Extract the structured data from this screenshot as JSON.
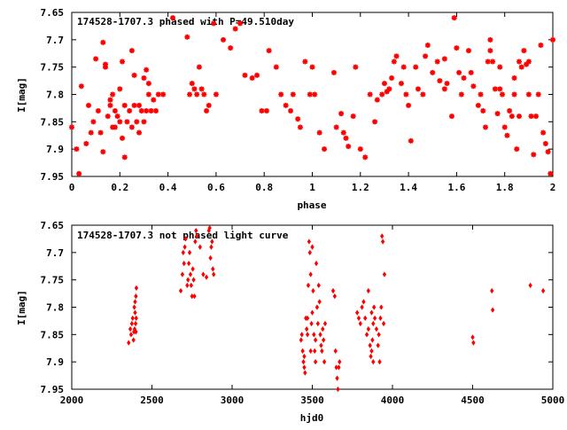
{
  "colors": {
    "data": "#ff0000",
    "axis": "#000000",
    "background": "#ffffff"
  },
  "chart_data": [
    {
      "type": "scatter",
      "title": "174528-1707.3 phased with P=49.510day",
      "xlabel": "phase",
      "ylabel": "I[mag]",
      "xlim": [
        0,
        2
      ],
      "ylim": [
        7.95,
        7.65
      ],
      "y_inverted": true,
      "grid": false,
      "x_ticks": [
        "0",
        "0.2",
        "0.4",
        "0.6",
        "0.8",
        "1",
        "1.2",
        "1.4",
        "1.6",
        "1.8",
        "2"
      ],
      "y_ticks": [
        "7.65",
        "7.7",
        "7.75",
        "7.8",
        "7.85",
        "7.9",
        "7.95"
      ],
      "marker": "x-star",
      "points": [
        [
          0.0,
          7.86
        ],
        [
          0.02,
          7.9
        ],
        [
          0.03,
          7.945
        ],
        [
          0.04,
          7.785
        ],
        [
          0.06,
          7.89
        ],
        [
          0.07,
          7.82
        ],
        [
          0.08,
          7.87
        ],
        [
          0.09,
          7.85
        ],
        [
          0.1,
          7.735
        ],
        [
          0.11,
          7.83
        ],
        [
          0.12,
          7.87
        ],
        [
          0.13,
          7.705
        ],
        [
          0.14,
          7.745
        ],
        [
          0.15,
          7.84
        ],
        [
          0.16,
          7.82
        ],
        [
          0.17,
          7.86
        ],
        [
          0.18,
          7.86
        ],
        [
          0.19,
          7.84
        ],
        [
          0.2,
          7.85
        ],
        [
          0.21,
          7.74
        ],
        [
          0.22,
          7.82
        ],
        [
          0.23,
          7.85
        ],
        [
          0.24,
          7.83
        ],
        [
          0.25,
          7.86
        ],
        [
          0.26,
          7.82
        ],
        [
          0.27,
          7.85
        ],
        [
          0.28,
          7.87
        ],
        [
          0.29,
          7.83
        ],
        [
          0.3,
          7.85
        ],
        [
          0.31,
          7.83
        ],
        [
          0.32,
          7.8
        ],
        [
          0.33,
          7.83
        ],
        [
          0.36,
          7.8
        ],
        [
          0.38,
          7.8
        ],
        [
          0.14,
          7.75
        ],
        [
          0.13,
          7.905
        ],
        [
          0.16,
          7.81
        ],
        [
          0.17,
          7.8
        ],
        [
          0.18,
          7.83
        ],
        [
          0.2,
          7.79
        ],
        [
          0.21,
          7.88
        ],
        [
          0.22,
          7.915
        ],
        [
          0.25,
          7.72
        ],
        [
          0.26,
          7.765
        ],
        [
          0.28,
          7.82
        ],
        [
          0.3,
          7.77
        ],
        [
          0.31,
          7.755
        ],
        [
          0.32,
          7.78
        ],
        [
          0.34,
          7.81
        ],
        [
          0.35,
          7.83
        ],
        [
          0.42,
          7.66
        ],
        [
          0.48,
          7.695
        ],
        [
          0.49,
          7.8
        ],
        [
          0.5,
          7.78
        ],
        [
          0.51,
          7.79
        ],
        [
          0.52,
          7.8
        ],
        [
          0.53,
          7.75
        ],
        [
          0.54,
          7.79
        ],
        [
          0.55,
          7.8
        ],
        [
          0.56,
          7.83
        ],
        [
          0.57,
          7.82
        ],
        [
          0.59,
          7.67
        ],
        [
          0.6,
          7.8
        ],
        [
          0.63,
          7.7
        ],
        [
          0.66,
          7.715
        ],
        [
          0.68,
          7.68
        ],
        [
          0.7,
          7.67
        ],
        [
          0.72,
          7.765
        ],
        [
          0.75,
          7.77
        ],
        [
          0.77,
          7.765
        ],
        [
          0.79,
          7.83
        ],
        [
          0.81,
          7.83
        ],
        [
          0.82,
          7.72
        ],
        [
          0.85,
          7.75
        ],
        [
          0.87,
          7.8
        ],
        [
          0.89,
          7.82
        ],
        [
          0.91,
          7.83
        ],
        [
          0.92,
          7.8
        ],
        [
          0.94,
          7.845
        ],
        [
          0.95,
          7.86
        ],
        [
          0.97,
          7.74
        ],
        [
          0.99,
          7.8
        ],
        [
          1.0,
          7.75
        ],
        [
          1.01,
          7.8
        ],
        [
          1.03,
          7.87
        ],
        [
          1.05,
          7.9
        ],
        [
          1.09,
          7.76
        ],
        [
          1.1,
          7.86
        ],
        [
          1.12,
          7.835
        ],
        [
          1.13,
          7.87
        ],
        [
          1.14,
          7.88
        ],
        [
          1.15,
          7.895
        ],
        [
          1.17,
          7.84
        ],
        [
          1.18,
          7.75
        ],
        [
          1.2,
          7.9
        ],
        [
          1.22,
          7.915
        ],
        [
          1.24,
          7.8
        ],
        [
          1.26,
          7.85
        ],
        [
          1.27,
          7.81
        ],
        [
          1.29,
          7.8
        ],
        [
          1.3,
          7.78
        ],
        [
          1.31,
          7.795
        ],
        [
          1.32,
          7.79
        ],
        [
          1.33,
          7.77
        ],
        [
          1.34,
          7.74
        ],
        [
          1.35,
          7.73
        ],
        [
          1.37,
          7.78
        ],
        [
          1.38,
          7.75
        ],
        [
          1.39,
          7.8
        ],
        [
          1.4,
          7.82
        ],
        [
          1.41,
          7.885
        ],
        [
          1.43,
          7.75
        ],
        [
          1.44,
          7.79
        ],
        [
          1.46,
          7.8
        ],
        [
          1.47,
          7.73
        ],
        [
          1.48,
          7.71
        ],
        [
          1.5,
          7.76
        ],
        [
          1.52,
          7.74
        ],
        [
          1.53,
          7.775
        ],
        [
          1.55,
          7.735
        ],
        [
          1.56,
          7.78
        ],
        [
          1.58,
          7.84
        ],
        [
          1.59,
          7.66
        ],
        [
          1.6,
          7.715
        ],
        [
          1.61,
          7.76
        ],
        [
          1.63,
          7.77
        ],
        [
          1.65,
          7.72
        ],
        [
          1.66,
          7.76
        ],
        [
          1.67,
          7.785
        ],
        [
          1.69,
          7.82
        ],
        [
          1.7,
          7.8
        ],
        [
          1.71,
          7.83
        ],
        [
          1.72,
          7.86
        ],
        [
          1.73,
          7.74
        ],
        [
          1.74,
          7.7
        ],
        [
          1.75,
          7.74
        ],
        [
          1.76,
          7.79
        ],
        [
          1.77,
          7.835
        ],
        [
          1.78,
          7.79
        ],
        [
          1.79,
          7.8
        ],
        [
          1.8,
          7.86
        ],
        [
          1.81,
          7.875
        ],
        [
          1.82,
          7.83
        ],
        [
          1.83,
          7.84
        ],
        [
          1.84,
          7.8
        ],
        [
          1.85,
          7.9
        ],
        [
          1.86,
          7.84
        ],
        [
          1.87,
          7.75
        ],
        [
          1.88,
          7.72
        ],
        [
          1.89,
          7.745
        ],
        [
          1.9,
          7.8
        ],
        [
          1.91,
          7.84
        ],
        [
          1.92,
          7.91
        ],
        [
          1.93,
          7.84
        ],
        [
          1.94,
          7.8
        ],
        [
          1.95,
          7.71
        ],
        [
          1.96,
          7.87
        ],
        [
          1.97,
          7.89
        ],
        [
          1.98,
          7.905
        ],
        [
          1.99,
          7.945
        ],
        [
          2.0,
          7.7
        ],
        [
          1.55,
          7.79
        ],
        [
          1.62,
          7.8
        ],
        [
          1.74,
          7.72
        ],
        [
          1.78,
          7.75
        ],
        [
          1.84,
          7.77
        ],
        [
          1.86,
          7.74
        ],
        [
          1.9,
          7.74
        ]
      ]
    },
    {
      "type": "scatter",
      "title": "174528-1707.3 not phased light curve",
      "xlabel": "hjd0",
      "ylabel": "I[mag]",
      "xlim": [
        2000,
        5000
      ],
      "ylim": [
        7.95,
        7.65
      ],
      "y_inverted": true,
      "grid": false,
      "x_ticks": [
        "2000",
        "2500",
        "3000",
        "3500",
        "4000",
        "4500",
        "5000"
      ],
      "y_ticks": [
        "7.65",
        "7.7",
        "7.75",
        "7.8",
        "7.85",
        "7.9",
        "7.95"
      ],
      "marker": "diamond",
      "points": [
        [
          2355,
          7.865
        ],
        [
          2365,
          7.84
        ],
        [
          2370,
          7.85
        ],
        [
          2375,
          7.83
        ],
        [
          2380,
          7.82
        ],
        [
          2385,
          7.86
        ],
        [
          2390,
          7.8
        ],
        [
          2395,
          7.81
        ],
        [
          2395,
          7.79
        ],
        [
          2400,
          7.78
        ],
        [
          2403,
          7.765
        ],
        [
          2398,
          7.83
        ],
        [
          2402,
          7.82
        ],
        [
          2400,
          7.845
        ],
        [
          2392,
          7.84
        ],
        [
          2388,
          7.845
        ],
        [
          2680,
          7.77
        ],
        [
          2690,
          7.74
        ],
        [
          2695,
          7.7
        ],
        [
          2700,
          7.72
        ],
        [
          2705,
          7.69
        ],
        [
          2710,
          7.675
        ],
        [
          2720,
          7.76
        ],
        [
          2725,
          7.75
        ],
        [
          2730,
          7.72
        ],
        [
          2735,
          7.7
        ],
        [
          2740,
          7.74
        ],
        [
          2745,
          7.76
        ],
        [
          2750,
          7.78
        ],
        [
          2755,
          7.73
        ],
        [
          2760,
          7.75
        ],
        [
          2765,
          7.78
        ],
        [
          2770,
          7.68
        ],
        [
          2775,
          7.66
        ],
        [
          2780,
          7.67
        ],
        [
          2800,
          7.69
        ],
        [
          2820,
          7.74
        ],
        [
          2840,
          7.745
        ],
        [
          2855,
          7.66
        ],
        [
          2860,
          7.655
        ],
        [
          2865,
          7.71
        ],
        [
          2870,
          7.69
        ],
        [
          2875,
          7.68
        ],
        [
          2880,
          7.73
        ],
        [
          2885,
          7.74
        ],
        [
          3430,
          7.86
        ],
        [
          3435,
          7.85
        ],
        [
          3440,
          7.88
        ],
        [
          3445,
          7.9
        ],
        [
          3450,
          7.89
        ],
        [
          3455,
          7.92
        ],
        [
          3460,
          7.82
        ],
        [
          3465,
          7.84
        ],
        [
          3470,
          7.85
        ],
        [
          3475,
          7.76
        ],
        [
          3480,
          7.68
        ],
        [
          3485,
          7.7
        ],
        [
          3490,
          7.74
        ],
        [
          3495,
          7.83
        ],
        [
          3500,
          7.81
        ],
        [
          3505,
          7.77
        ],
        [
          3510,
          7.85
        ],
        [
          3515,
          7.88
        ],
        [
          3520,
          7.86
        ],
        [
          3525,
          7.72
        ],
        [
          3530,
          7.8
        ],
        [
          3535,
          7.83
        ],
        [
          3540,
          7.76
        ],
        [
          3545,
          7.79
        ],
        [
          3550,
          7.85
        ],
        [
          3555,
          7.87
        ],
        [
          3560,
          7.88
        ],
        [
          3565,
          7.84
        ],
        [
          3570,
          7.86
        ],
        [
          3575,
          7.9
        ],
        [
          3580,
          7.83
        ],
        [
          3630,
          7.77
        ],
        [
          3640,
          7.78
        ],
        [
          3645,
          7.88
        ],
        [
          3650,
          7.91
        ],
        [
          3655,
          7.93
        ],
        [
          3660,
          7.95
        ],
        [
          3665,
          7.91
        ],
        [
          3670,
          7.9
        ],
        [
          3520,
          7.9
        ],
        [
          3500,
          7.69
        ],
        [
          3470,
          7.82
        ],
        [
          3450,
          7.91
        ],
        [
          3490,
          7.88
        ],
        [
          3780,
          7.81
        ],
        [
          3790,
          7.82
        ],
        [
          3800,
          7.83
        ],
        [
          3810,
          7.8
        ],
        [
          3820,
          7.79
        ],
        [
          3830,
          7.82
        ],
        [
          3840,
          7.85
        ],
        [
          3850,
          7.84
        ],
        [
          3860,
          7.87
        ],
        [
          3865,
          7.89
        ],
        [
          3870,
          7.88
        ],
        [
          3875,
          7.86
        ],
        [
          3880,
          7.83
        ],
        [
          3885,
          7.8
        ],
        [
          3890,
          7.82
        ],
        [
          3900,
          7.84
        ],
        [
          3910,
          7.87
        ],
        [
          3915,
          7.85
        ],
        [
          3920,
          7.9
        ],
        [
          3930,
          7.8
        ],
        [
          3935,
          7.67
        ],
        [
          3940,
          7.68
        ],
        [
          3945,
          7.83
        ],
        [
          3950,
          7.74
        ],
        [
          3850,
          7.77
        ],
        [
          3870,
          7.81
        ],
        [
          3880,
          7.9
        ],
        [
          3925,
          7.82
        ],
        [
          4500,
          7.855
        ],
        [
          4505,
          7.865
        ],
        [
          4620,
          7.77
        ],
        [
          4625,
          7.805
        ],
        [
          4860,
          7.76
        ],
        [
          4940,
          7.77
        ]
      ]
    }
  ]
}
